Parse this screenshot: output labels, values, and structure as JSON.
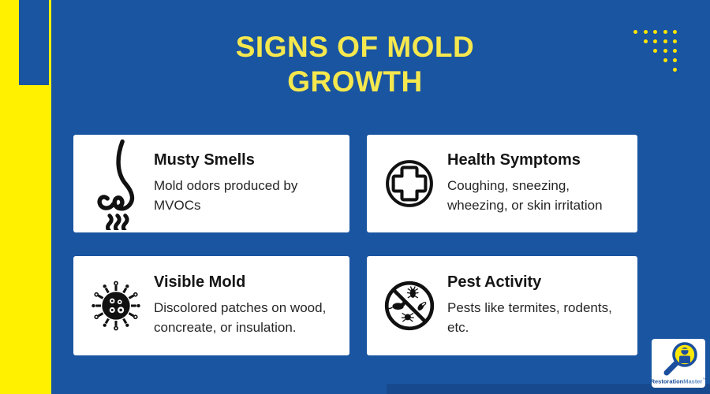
{
  "header": {
    "title_line1": "SIGNS OF MOLD",
    "title_line2": "GROWTH"
  },
  "decor": {
    "dot_rows": [
      5,
      4,
      3,
      2,
      1
    ]
  },
  "cards": [
    {
      "icon": "nose-smell-icon",
      "title": "Musty Smells",
      "body": "Mold odors produced by MVOCs"
    },
    {
      "icon": "medical-cross-icon",
      "title": "Health Symptoms",
      "body": "Coughing, sneezing, wheezing, or skin irritation"
    },
    {
      "icon": "mold-spore-icon",
      "title": "Visible Mold",
      "body": "Discolored patches on wood, concreate, or insulation."
    },
    {
      "icon": "no-pests-icon",
      "title": "Pest Activity",
      "body": "Pests like termites, rodents, etc."
    }
  ],
  "logo": {
    "brand_part1": "Restoration",
    "brand_part2": "Master",
    "trademark": "™"
  },
  "colors": {
    "background_blue": "#1A55A1",
    "accent_yellow": "#FFF100",
    "title_yellow": "#F5E84E",
    "dot_yellow": "#FFE603",
    "card_background": "#FFFFFF",
    "card_text": "#262626",
    "bottom_strip_blue": "#17498F",
    "logo_blue": "#1B4F9E",
    "logo_lens_yellow": "#FFE70A"
  }
}
